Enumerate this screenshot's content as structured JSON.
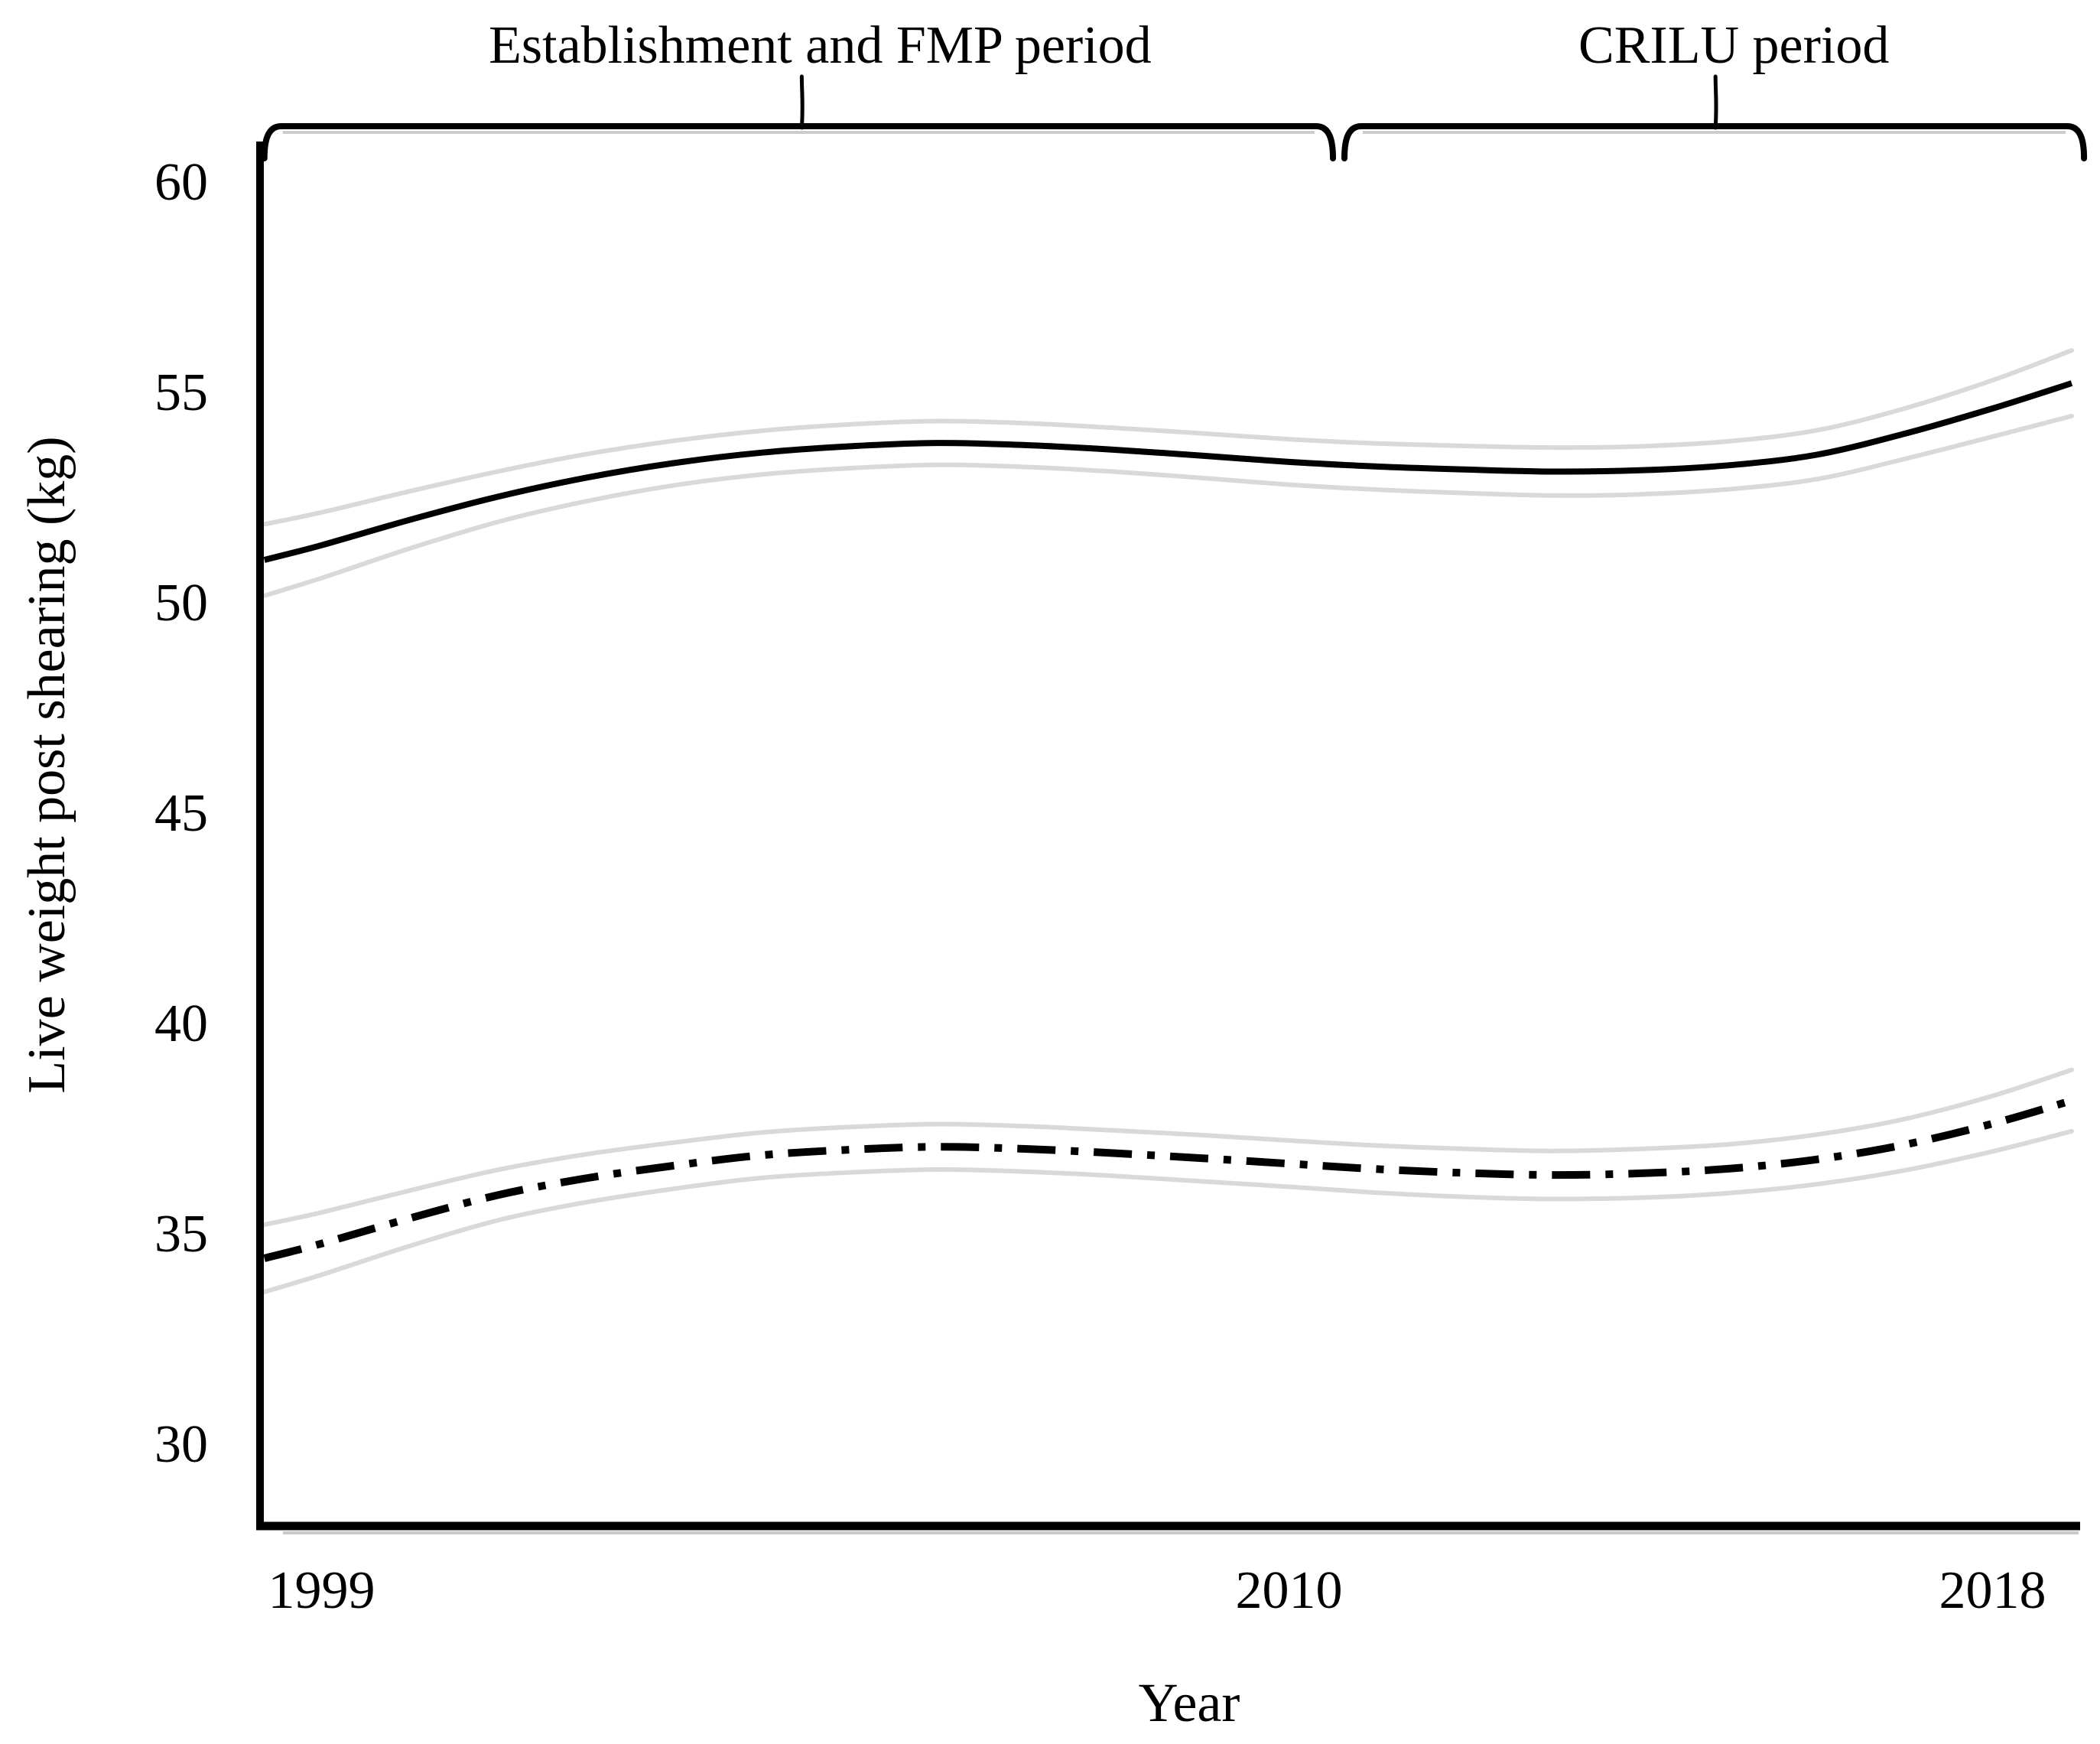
{
  "page": {
    "background_color": "#ffffff"
  },
  "chart_data": {
    "type": "line",
    "title": "",
    "xlabel": "Year",
    "ylabel": "Live weight post shearing (kg)",
    "x_tick_labels": [
      "1999",
      "2010",
      "2018"
    ],
    "x_tick_years": [
      1999,
      2010,
      2018
    ],
    "y_tick_labels": [
      "30",
      "35",
      "40",
      "45",
      "50",
      "55",
      "60"
    ],
    "y_ticks": [
      30,
      35,
      40,
      45,
      50,
      55,
      60
    ],
    "xlim": [
      1998.3,
      2019.3
    ],
    "ylim": [
      28.4,
      61.2
    ],
    "grid": false,
    "legend": false,
    "line_color": "#000000",
    "confidence_band_color": "#d9d9d9",
    "x_years": [
      1998.35,
      1999,
      2000,
      2001,
      2002,
      2003,
      2004,
      2005,
      2006,
      2007,
      2008,
      2009,
      2010,
      2011,
      2012,
      2013,
      2014,
      2015,
      2016,
      2017,
      2018,
      2018.9
    ],
    "series": [
      {
        "name": "upper-solid-curve",
        "line_style": "solid",
        "values": [
          51.0,
          51.35,
          51.95,
          52.5,
          52.95,
          53.3,
          53.55,
          53.7,
          53.78,
          53.73,
          53.62,
          53.48,
          53.33,
          53.22,
          53.15,
          53.1,
          53.13,
          53.25,
          53.5,
          54.0,
          54.6,
          55.2
        ],
        "ci_halfwidth_kg": [
          0.85,
          0.78,
          0.68,
          0.6,
          0.56,
          0.53,
          0.52,
          0.52,
          0.52,
          0.52,
          0.52,
          0.53,
          0.54,
          0.55,
          0.56,
          0.57,
          0.57,
          0.57,
          0.58,
          0.6,
          0.67,
          0.78
        ]
      },
      {
        "name": "lower-dash-dot-curve",
        "line_style": "dash-dot",
        "values": [
          34.4,
          34.75,
          35.35,
          35.9,
          36.3,
          36.6,
          36.85,
          36.98,
          37.05,
          37.0,
          36.9,
          36.78,
          36.65,
          36.52,
          36.43,
          36.38,
          36.42,
          36.53,
          36.75,
          37.1,
          37.6,
          38.15
        ],
        "ci_halfwidth_kg": [
          0.8,
          0.74,
          0.66,
          0.6,
          0.57,
          0.55,
          0.54,
          0.54,
          0.54,
          0.54,
          0.54,
          0.55,
          0.55,
          0.56,
          0.57,
          0.57,
          0.58,
          0.58,
          0.59,
          0.61,
          0.66,
          0.73
        ]
      }
    ],
    "annotations": [
      {
        "label": "Establishment and FMP period",
        "span_years": [
          1998.35,
          2010.5
        ],
        "tick_year": 2004.46
      },
      {
        "label": "CRILU period",
        "span_years": [
          2010.63,
          2019.04
        ],
        "tick_year": 2014.85
      }
    ]
  }
}
